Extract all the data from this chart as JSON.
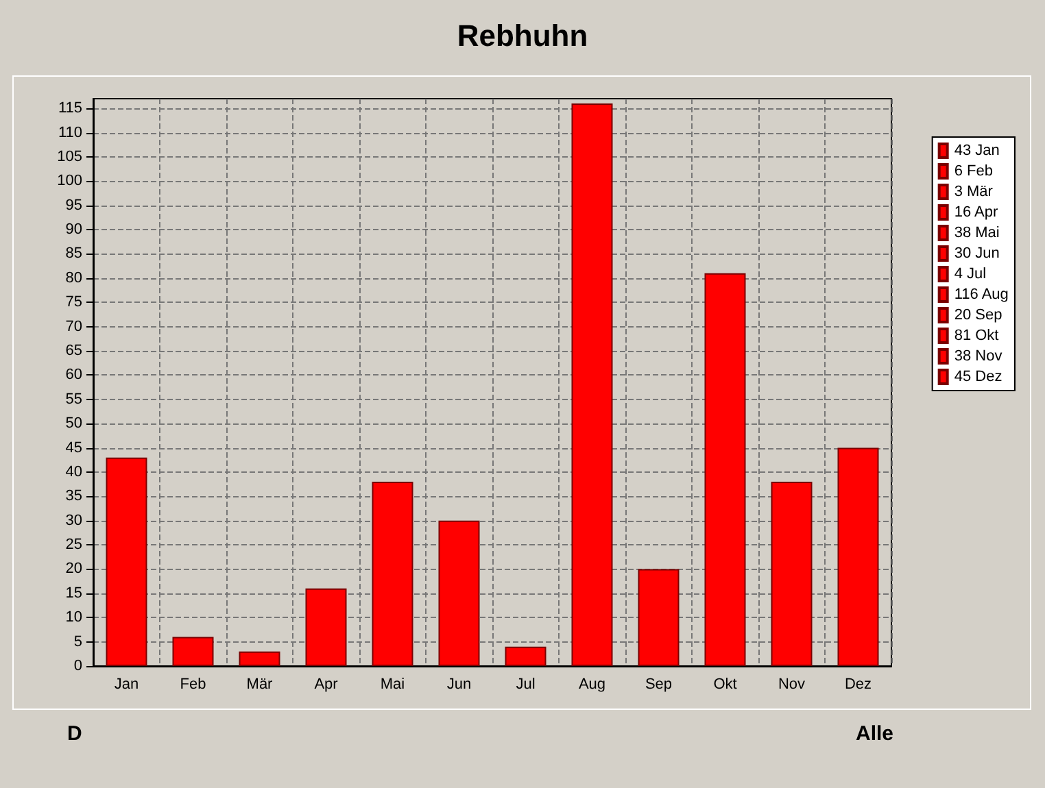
{
  "chart_data": {
    "type": "bar",
    "title": "Rebhuhn",
    "categories": [
      "Jan",
      "Feb",
      "Mär",
      "Apr",
      "Mai",
      "Jun",
      "Jul",
      "Aug",
      "Sep",
      "Okt",
      "Nov",
      "Dez"
    ],
    "series": [
      {
        "name": "43 Jan",
        "color": "#ff0000",
        "values": [
          43,
          null,
          null,
          null,
          null,
          null,
          null,
          null,
          null,
          null,
          null,
          null
        ]
      },
      {
        "name": "6 Feb",
        "color": "#ff0000",
        "values": [
          null,
          6,
          null,
          null,
          null,
          null,
          null,
          null,
          null,
          null,
          null,
          null
        ]
      },
      {
        "name": "3 Mär",
        "color": "#ff0000",
        "values": [
          null,
          null,
          3,
          null,
          null,
          null,
          null,
          null,
          null,
          null,
          null,
          null
        ]
      },
      {
        "name": "16 Apr",
        "color": "#ff0000",
        "values": [
          null,
          null,
          null,
          16,
          null,
          null,
          null,
          null,
          null,
          null,
          null,
          null
        ]
      },
      {
        "name": "38 Mai",
        "color": "#ff0000",
        "values": [
          null,
          null,
          null,
          null,
          38,
          null,
          null,
          null,
          null,
          null,
          null,
          null
        ]
      },
      {
        "name": "30 Jun",
        "color": "#ff0000",
        "values": [
          null,
          null,
          null,
          null,
          null,
          30,
          null,
          null,
          null,
          null,
          null,
          null
        ]
      },
      {
        "name": "4 Jul",
        "color": "#ff0000",
        "values": [
          null,
          null,
          null,
          null,
          null,
          null,
          4,
          null,
          null,
          null,
          null,
          null
        ]
      },
      {
        "name": "116 Aug",
        "color": "#ff0000",
        "values": [
          null,
          null,
          null,
          null,
          null,
          null,
          null,
          116,
          null,
          null,
          null,
          null
        ]
      },
      {
        "name": "20 Sep",
        "color": "#ff0000",
        "values": [
          null,
          null,
          null,
          null,
          null,
          null,
          null,
          null,
          20,
          null,
          null,
          null
        ]
      },
      {
        "name": "81 Okt",
        "color": "#ff0000",
        "values": [
          null,
          null,
          null,
          null,
          null,
          null,
          null,
          null,
          null,
          81,
          null,
          null
        ]
      },
      {
        "name": "38 Nov",
        "color": "#ff0000",
        "values": [
          null,
          null,
          null,
          null,
          null,
          null,
          null,
          null,
          null,
          null,
          38,
          null
        ]
      },
      {
        "name": "45 Dez",
        "color": "#ff0000",
        "values": [
          null,
          null,
          null,
          null,
          null,
          null,
          null,
          null,
          null,
          null,
          null,
          45
        ]
      }
    ],
    "ylim": [
      0,
      117
    ],
    "yticks": [
      0,
      5,
      10,
      15,
      20,
      25,
      30,
      35,
      40,
      45,
      50,
      55,
      60,
      65,
      70,
      75,
      80,
      85,
      90,
      95,
      100,
      105,
      110,
      115
    ],
    "grid": true,
    "legend": "right",
    "annotations": [
      "D",
      "Alle"
    ]
  }
}
